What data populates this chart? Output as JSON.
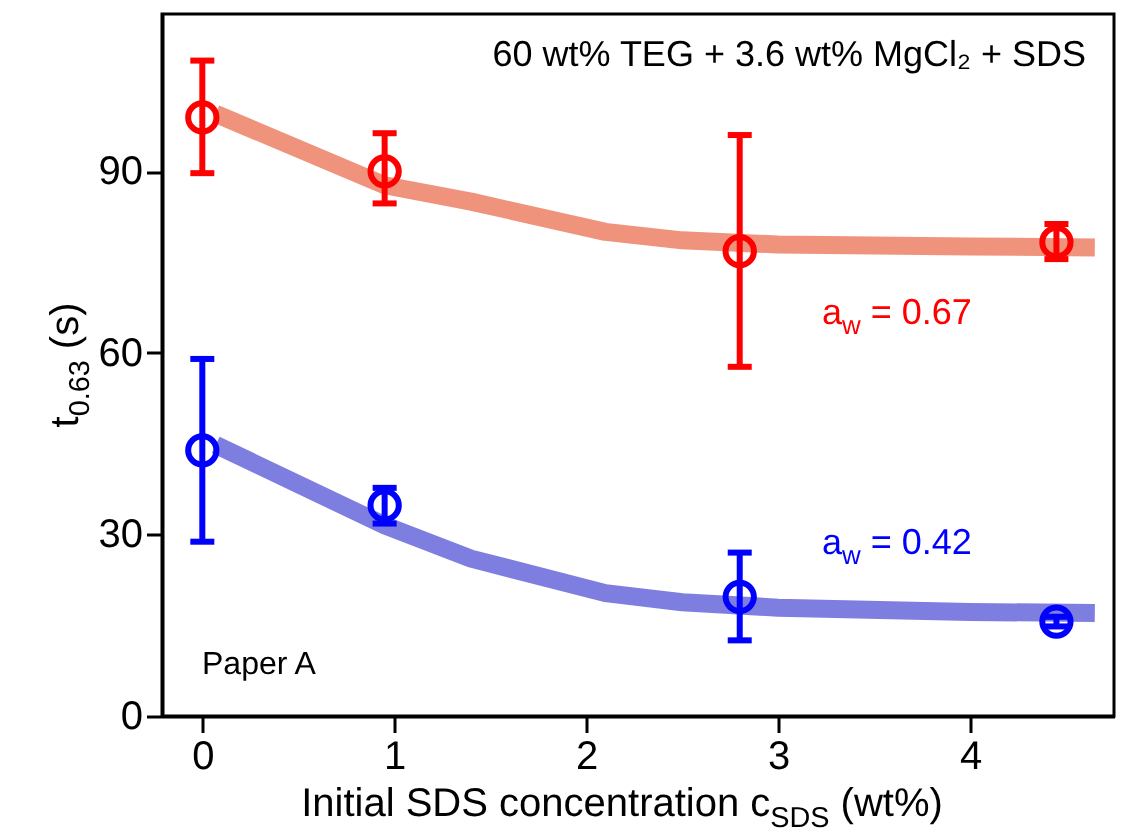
{
  "chart_data": {
    "type": "scatter",
    "title": "60 wt% TEG + 3.6 wt% MgCl₂ + SDS",
    "xlabel": "Initial SDS concentration c$_{SDS}$ (wt%)",
    "ylabel": "t$_{0.63}$ (s)",
    "xlim": [
      -0.21,
      4.75
    ],
    "xticks": [
      0,
      1,
      2,
      3,
      4
    ],
    "ylim": [
      0,
      116
    ],
    "yticks": [
      0,
      30,
      60,
      90
    ],
    "grid": false,
    "marker": "circle",
    "annotations": [
      "a$_{w}$ = 0.67",
      "a$_{w}$ = 0.42",
      "Paper A"
    ],
    "series": [
      {
        "type": "line",
        "marker": "none",
        "color": "#f0937c",
        "x": [
          0.07,
          0.95,
          1.4,
          2.1,
          2.5,
          3.0,
          4.0,
          4.65
        ],
        "values": [
          99.5,
          87.7,
          85,
          80,
          78.6,
          77.9,
          77.6,
          77.4
        ]
      },
      {
        "type": "line",
        "marker": "none",
        "color": "#7e7ee0",
        "x": [
          0.07,
          0.95,
          1.4,
          2.1,
          2.5,
          3.0,
          4.0,
          4.65
        ],
        "values": [
          44.8,
          31.5,
          26,
          20.3,
          18.8,
          17.9,
          17.2,
          17
        ]
      },
      {
        "color": "#ff0000",
        "x": [
          0,
          0.95,
          2.8,
          4.45
        ],
        "values": [
          98.9,
          90,
          76.8,
          78.3
        ],
        "errors": [
          [
            89.7,
            108.3
          ],
          [
            84.7,
            96.3
          ],
          [
            57.7,
            96
          ],
          [
            75.5,
            81.3
          ]
        ]
      },
      {
        "color": "#0000ff",
        "x": [
          0,
          0.95,
          2.8,
          4.45
        ],
        "values": [
          43.9,
          34.8,
          19.7,
          15.6
        ],
        "errors": [
          [
            28.8,
            59
          ],
          [
            31.8,
            37.7
          ],
          [
            12.5,
            27
          ],
          [
            14.8,
            16.4
          ]
        ]
      }
    ]
  }
}
